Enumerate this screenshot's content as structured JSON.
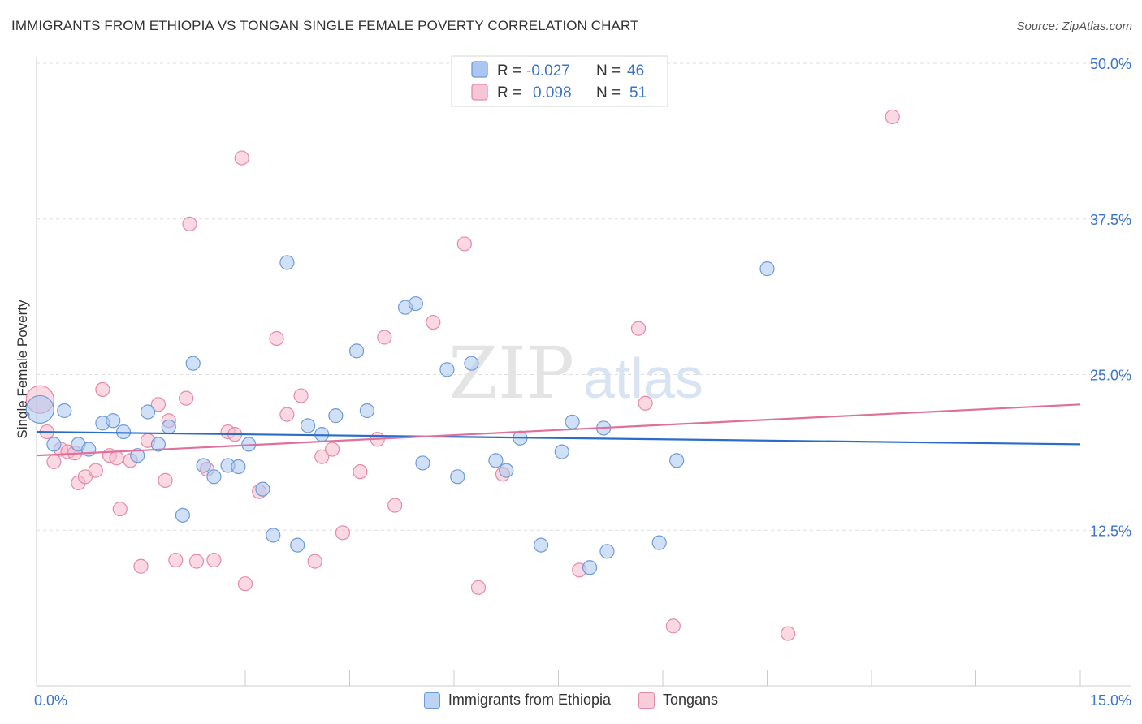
{
  "title": "IMMIGRANTS FROM ETHIOPIA VS TONGAN SINGLE FEMALE POVERTY CORRELATION CHART",
  "source": "Source: ZipAtlas.com",
  "watermark": {
    "part1": "ZIP",
    "part2": "atlas"
  },
  "legend": {
    "rows": [
      {
        "r_label": "R =",
        "r_value": "-0.027",
        "n_label": "N =",
        "n_value": "46"
      },
      {
        "r_label": "R =",
        "r_value": "0.098",
        "n_label": "N =",
        "n_value": "51"
      }
    ]
  },
  "colors": {
    "blue_fill": "#a9c7f0",
    "blue_stroke": "#6f9bd8",
    "blue_line": "#2a6dc9",
    "pink_fill": "#f6b9cc",
    "pink_stroke": "#e58aaa",
    "pink_line": "#e0709a",
    "accent_text": "#3a74c8"
  },
  "chart_data": {
    "type": "scatter",
    "title": "IMMIGRANTS FROM ETHIOPIA VS TONGAN SINGLE FEMALE POVERTY CORRELATION CHART",
    "xlabel": "",
    "ylabel": "Single Female Poverty",
    "xlim": [
      0,
      15
    ],
    "ylim": [
      0,
      50
    ],
    "x_tick_labels": [
      "0.0%",
      "15.0%"
    ],
    "y_tick_labels": [
      "12.5%",
      "25.0%",
      "37.5%",
      "50.0%"
    ],
    "y_ticks": [
      12.5,
      25,
      37.5,
      50
    ],
    "x_minor_ticks": [
      1.5,
      3,
      4.5,
      6,
      7.5,
      9,
      10.5,
      12,
      13.5,
      15
    ],
    "grid": true,
    "legend_position": "top-center",
    "series": [
      {
        "name": "Immigrants from Ethiopia",
        "r": -0.027,
        "n": 46,
        "trend": {
          "x": [
            0,
            15
          ],
          "y": [
            20.4,
            19.4
          ]
        },
        "points": [
          {
            "x": 0.05,
            "y": 22.2,
            "big": true
          },
          {
            "x": 0.25,
            "y": 19.4
          },
          {
            "x": 0.4,
            "y": 22.1
          },
          {
            "x": 0.6,
            "y": 19.4
          },
          {
            "x": 0.75,
            "y": 19.0
          },
          {
            "x": 0.95,
            "y": 21.1
          },
          {
            "x": 1.1,
            "y": 21.3
          },
          {
            "x": 1.25,
            "y": 20.4
          },
          {
            "x": 1.45,
            "y": 18.5
          },
          {
            "x": 1.6,
            "y": 22.0
          },
          {
            "x": 1.75,
            "y": 19.4
          },
          {
            "x": 1.9,
            "y": 20.8
          },
          {
            "x": 2.1,
            "y": 13.7
          },
          {
            "x": 2.25,
            "y": 25.9
          },
          {
            "x": 2.4,
            "y": 17.7
          },
          {
            "x": 2.55,
            "y": 16.8
          },
          {
            "x": 2.75,
            "y": 17.7
          },
          {
            "x": 2.9,
            "y": 17.6
          },
          {
            "x": 3.05,
            "y": 19.4
          },
          {
            "x": 3.25,
            "y": 15.8
          },
          {
            "x": 3.4,
            "y": 12.1
          },
          {
            "x": 3.6,
            "y": 34.0
          },
          {
            "x": 3.75,
            "y": 11.3
          },
          {
            "x": 3.9,
            "y": 20.9
          },
          {
            "x": 4.1,
            "y": 20.2
          },
          {
            "x": 4.3,
            "y": 21.7
          },
          {
            "x": 4.6,
            "y": 26.9
          },
          {
            "x": 4.75,
            "y": 22.1
          },
          {
            "x": 5.3,
            "y": 30.4
          },
          {
            "x": 5.45,
            "y": 30.7
          },
          {
            "x": 5.55,
            "y": 17.9
          },
          {
            "x": 5.9,
            "y": 25.4
          },
          {
            "x": 6.05,
            "y": 16.8
          },
          {
            "x": 6.25,
            "y": 25.9
          },
          {
            "x": 6.75,
            "y": 17.3
          },
          {
            "x": 6.95,
            "y": 19.9
          },
          {
            "x": 6.6,
            "y": 18.1
          },
          {
            "x": 7.25,
            "y": 11.3
          },
          {
            "x": 7.55,
            "y": 18.8
          },
          {
            "x": 7.7,
            "y": 21.2
          },
          {
            "x": 7.95,
            "y": 9.5
          },
          {
            "x": 8.2,
            "y": 10.8
          },
          {
            "x": 8.15,
            "y": 20.7
          },
          {
            "x": 8.95,
            "y": 11.5
          },
          {
            "x": 9.2,
            "y": 18.1
          },
          {
            "x": 10.5,
            "y": 33.5
          }
        ]
      },
      {
        "name": "Tongans",
        "r": 0.098,
        "n": 51,
        "trend": {
          "x": [
            0,
            15
          ],
          "y": [
            18.5,
            22.6
          ]
        },
        "points": [
          {
            "x": 0.05,
            "y": 23.0,
            "big": true
          },
          {
            "x": 0.15,
            "y": 20.4
          },
          {
            "x": 0.25,
            "y": 18.0
          },
          {
            "x": 0.35,
            "y": 19.0
          },
          {
            "x": 0.45,
            "y": 18.8
          },
          {
            "x": 0.55,
            "y": 18.7
          },
          {
            "x": 0.6,
            "y": 16.3
          },
          {
            "x": 0.7,
            "y": 16.8
          },
          {
            "x": 0.85,
            "y": 17.3
          },
          {
            "x": 0.95,
            "y": 23.8
          },
          {
            "x": 1.05,
            "y": 18.5
          },
          {
            "x": 1.15,
            "y": 18.3
          },
          {
            "x": 1.2,
            "y": 14.2
          },
          {
            "x": 1.35,
            "y": 18.1
          },
          {
            "x": 1.5,
            "y": 9.6
          },
          {
            "x": 1.6,
            "y": 19.7
          },
          {
            "x": 1.75,
            "y": 22.6
          },
          {
            "x": 1.85,
            "y": 16.5
          },
          {
            "x": 1.9,
            "y": 21.3
          },
          {
            "x": 2.0,
            "y": 10.1
          },
          {
            "x": 2.15,
            "y": 23.1
          },
          {
            "x": 2.2,
            "y": 37.1
          },
          {
            "x": 2.3,
            "y": 10.0
          },
          {
            "x": 2.45,
            "y": 17.4
          },
          {
            "x": 2.55,
            "y": 10.1
          },
          {
            "x": 2.75,
            "y": 20.4
          },
          {
            "x": 2.85,
            "y": 20.2
          },
          {
            "x": 2.95,
            "y": 42.4
          },
          {
            "x": 3.0,
            "y": 8.2
          },
          {
            "x": 3.2,
            "y": 15.6
          },
          {
            "x": 3.45,
            "y": 27.9
          },
          {
            "x": 3.6,
            "y": 21.8
          },
          {
            "x": 3.8,
            "y": 23.3
          },
          {
            "x": 4.0,
            "y": 10.0
          },
          {
            "x": 4.1,
            "y": 18.4
          },
          {
            "x": 4.25,
            "y": 19.0
          },
          {
            "x": 4.4,
            "y": 12.3
          },
          {
            "x": 4.65,
            "y": 17.2
          },
          {
            "x": 4.9,
            "y": 19.8
          },
          {
            "x": 5.0,
            "y": 28.0
          },
          {
            "x": 5.15,
            "y": 14.5
          },
          {
            "x": 5.7,
            "y": 29.2
          },
          {
            "x": 6.15,
            "y": 35.5
          },
          {
            "x": 6.35,
            "y": 7.9
          },
          {
            "x": 6.7,
            "y": 17.0
          },
          {
            "x": 7.8,
            "y": 9.3
          },
          {
            "x": 8.65,
            "y": 28.7
          },
          {
            "x": 8.75,
            "y": 22.7
          },
          {
            "x": 9.15,
            "y": 4.8
          },
          {
            "x": 10.8,
            "y": 4.2
          },
          {
            "x": 12.3,
            "y": 45.7
          }
        ]
      }
    ]
  }
}
